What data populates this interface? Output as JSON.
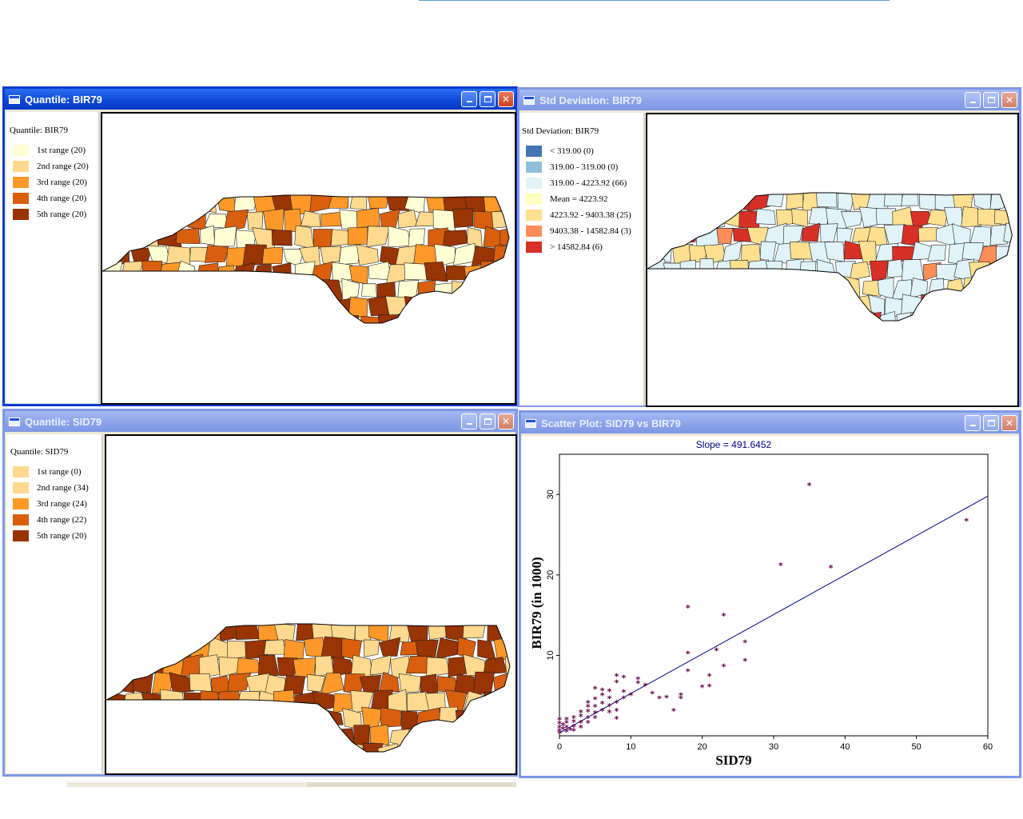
{
  "windows": {
    "quantile_bir": {
      "title": "Quantile: BIR79",
      "legend_title": "Quantile: BIR79",
      "legend": [
        {
          "label": "1st range (20)",
          "color": "#ffffd4"
        },
        {
          "label": "2nd range (20)",
          "color": "#fed98e"
        },
        {
          "label": "3rd range (20)",
          "color": "#fe9929"
        },
        {
          "label": "4th range (20)",
          "color": "#d95f0e"
        },
        {
          "label": "5th range (20)",
          "color": "#993404"
        }
      ]
    },
    "stddev_bir": {
      "title": "Std Deviation: BIR79",
      "legend_title": "Std Deviation: BIR79",
      "legend": [
        {
          "label": "< 319.00 (0)",
          "color": "#4575b4"
        },
        {
          "label": "319.00 - 319.00 (0)",
          "color": "#91bfdb"
        },
        {
          "label": "319.00 - 4223.92 (66)",
          "color": "#e0f3f8"
        },
        {
          "label": "Mean = 4223.92",
          "color": "#ffffbf"
        },
        {
          "label": "4223.92 - 9403.38 (25)",
          "color": "#fee090"
        },
        {
          "label": "9403.38 - 14582.84 (3)",
          "color": "#fc8d59"
        },
        {
          "label": "> 14582.84 (6)",
          "color": "#d73027"
        }
      ]
    },
    "quantile_sid": {
      "title": "Quantile: SID79",
      "legend_title": "Quantile: SID79",
      "legend": [
        {
          "label": "1st range (0)",
          "color": "#fed98e"
        },
        {
          "label": "2nd range (34)",
          "color": "#fed98e"
        },
        {
          "label": "3rd range (24)",
          "color": "#fe9929"
        },
        {
          "label": "4th range (22)",
          "color": "#d95f0e"
        },
        {
          "label": "5th range (20)",
          "color": "#993404"
        }
      ]
    },
    "scatter": {
      "title": "Scatter Plot: SID79 vs BIR79"
    }
  },
  "chart_data": {
    "type": "scatter",
    "title": "Slope = 491.6452",
    "xlabel": "SID79",
    "ylabel": "BIR79 (in 1000)",
    "xlim": [
      0,
      60
    ],
    "ylim": [
      0,
      35
    ],
    "xticks": [
      0,
      10,
      20,
      30,
      40,
      50,
      60
    ],
    "yticks": [
      10,
      20,
      30
    ],
    "marker_color": "#660044",
    "line_color": "#00008b",
    "regression": {
      "x": [
        0,
        60
      ],
      "y": [
        0.35,
        29.8
      ]
    },
    "points": [
      [
        0,
        0.3
      ],
      [
        0,
        0.6
      ],
      [
        0,
        1.0
      ],
      [
        0,
        1.5
      ],
      [
        0,
        2.0
      ],
      [
        0.5,
        0.8
      ],
      [
        0.5,
        1.3
      ],
      [
        1,
        0.5
      ],
      [
        1,
        1.0
      ],
      [
        1,
        1.6
      ],
      [
        1,
        2.0
      ],
      [
        1.5,
        0.7
      ],
      [
        2,
        0.6
      ],
      [
        2,
        1.1
      ],
      [
        2,
        1.7
      ],
      [
        2,
        2.2
      ],
      [
        3,
        1.0
      ],
      [
        3,
        1.6
      ],
      [
        3,
        2.4
      ],
      [
        3,
        2.9
      ],
      [
        4,
        1.6
      ],
      [
        4,
        2.2
      ],
      [
        4,
        3.0
      ],
      [
        4,
        3.6
      ],
      [
        4,
        4.1
      ],
      [
        5,
        2.2
      ],
      [
        5,
        2.8
      ],
      [
        5,
        3.6
      ],
      [
        5,
        4.5
      ],
      [
        5,
        5.8
      ],
      [
        6,
        3.1
      ],
      [
        6,
        4.0
      ],
      [
        6,
        5.0
      ],
      [
        6,
        5.6
      ],
      [
        7,
        2.9
      ],
      [
        7,
        3.7
      ],
      [
        7,
        4.6
      ],
      [
        7,
        5.5
      ],
      [
        8,
        2.1
      ],
      [
        8,
        3.1
      ],
      [
        8,
        4.1
      ],
      [
        8,
        6.6
      ],
      [
        8,
        7.4
      ],
      [
        9,
        4.6
      ],
      [
        9,
        5.4
      ],
      [
        9,
        7.2
      ],
      [
        10,
        5.0
      ],
      [
        11,
        6.5
      ],
      [
        11,
        7.0
      ],
      [
        12,
        6.2
      ],
      [
        13,
        5.2
      ],
      [
        14,
        4.6
      ],
      [
        15,
        4.7
      ],
      [
        16,
        3.1
      ],
      [
        17,
        4.6
      ],
      [
        17,
        5.0
      ],
      [
        18,
        8.0
      ],
      [
        18,
        10.2
      ],
      [
        18,
        15.9
      ],
      [
        20,
        6.0
      ],
      [
        21,
        6.1
      ],
      [
        21,
        7.4
      ],
      [
        22,
        10.6
      ],
      [
        23,
        8.6
      ],
      [
        23,
        14.9
      ],
      [
        26,
        9.3
      ],
      [
        26,
        11.6
      ],
      [
        31,
        21.2
      ],
      [
        35,
        31.1
      ],
      [
        38,
        20.9
      ],
      [
        57,
        26.7
      ]
    ]
  }
}
